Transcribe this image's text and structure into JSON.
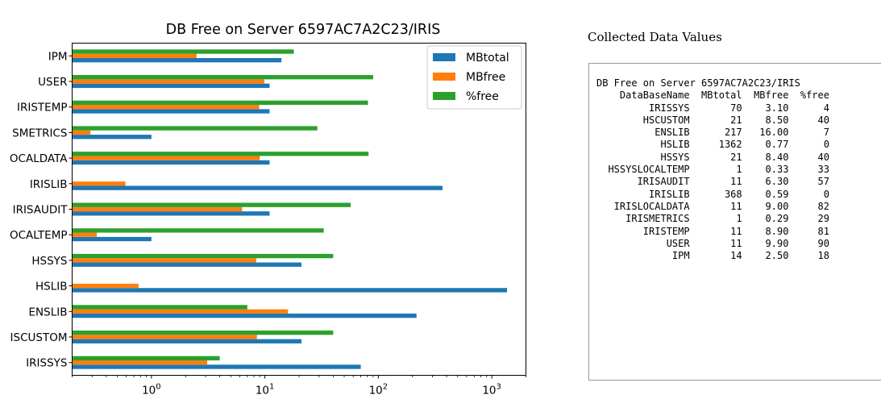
{
  "chart_data": {
    "type": "bar",
    "orientation": "horizontal",
    "title": "DB Free on Server 6597AC7A2C23/IRIS",
    "x_scale": "log",
    "xlim": [
      0.2,
      2000
    ],
    "x_ticks": [
      {
        "value": 1,
        "base": "10",
        "exp": "0"
      },
      {
        "value": 10,
        "base": "10",
        "exp": "1"
      },
      {
        "value": 100,
        "base": "10",
        "exp": "2"
      },
      {
        "value": 1000,
        "base": "10",
        "exp": "3"
      }
    ],
    "categories": [
      "IRISSYS",
      "HSCUSTOM",
      "ENSLIB",
      "HSLIB",
      "HSSYS",
      "HSSYSLOCALTEMP",
      "IRISAUDIT",
      "IRISLIB",
      "IRISLOCALDATA",
      "IRISMETRICS",
      "IRISTEMP",
      "USER",
      "IPM"
    ],
    "category_labels": [
      "IRISSYS",
      "ISCUSTOM",
      "ENSLIB",
      "HSLIB",
      "HSSYS",
      "OCALTEMP",
      "IRISAUDIT",
      "IRISLIB",
      "OCALDATA",
      "SMETRICS",
      "IRISTEMP",
      "USER",
      "IPM"
    ],
    "series": [
      {
        "name": "MBtotal",
        "color": "#1f77b4",
        "values": [
          70,
          21,
          217,
          1362,
          21,
          1,
          11,
          368,
          11,
          1,
          11,
          11,
          14
        ]
      },
      {
        "name": "MBfree",
        "color": "#ff7f0e",
        "values": [
          3.1,
          8.5,
          16.0,
          0.77,
          8.4,
          0.33,
          6.3,
          0.59,
          9.0,
          0.29,
          8.9,
          9.9,
          2.5
        ]
      },
      {
        "name": "%free",
        "color": "#2ca02c",
        "values": [
          4,
          40,
          7,
          0,
          40,
          33,
          57,
          0,
          82,
          29,
          81,
          90,
          18
        ]
      }
    ],
    "legend": "top-right",
    "grid": false
  },
  "side_panel": {
    "heading": "Collected Data Values",
    "report_title": "DB Free on Server 6597AC7A2C23/IRIS",
    "columns": [
      "DataBaseName",
      "MBtotal",
      "MBfree",
      "%free"
    ],
    "rows": [
      [
        "IRISSYS",
        "70",
        "3.10",
        "4"
      ],
      [
        "HSCUSTOM",
        "21",
        "8.50",
        "40"
      ],
      [
        "ENSLIB",
        "217",
        "16.00",
        "7"
      ],
      [
        "HSLIB",
        "1362",
        "0.77",
        "0"
      ],
      [
        "HSSYS",
        "21",
        "8.40",
        "40"
      ],
      [
        "HSSYSLOCALTEMP",
        "1",
        "0.33",
        "33"
      ],
      [
        "IRISAUDIT",
        "11",
        "6.30",
        "57"
      ],
      [
        "IRISLIB",
        "368",
        "0.59",
        "0"
      ],
      [
        "IRISLOCALDATA",
        "11",
        "9.00",
        "82"
      ],
      [
        "IRISMETRICS",
        "1",
        "0.29",
        "29"
      ],
      [
        "IRISTEMP",
        "11",
        "8.90",
        "81"
      ],
      [
        "USER",
        "11",
        "9.90",
        "90"
      ],
      [
        "IPM",
        "14",
        "2.50",
        "18"
      ]
    ]
  }
}
